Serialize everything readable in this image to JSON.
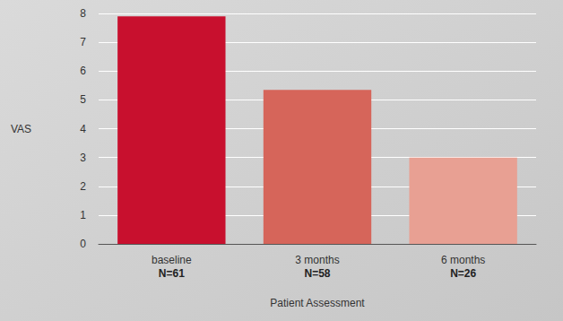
{
  "chart_data": {
    "type": "bar",
    "categories": [
      "baseline\nN=61",
      "3 months\nN=58",
      "6 months\nN=26"
    ],
    "values": [
      7.9,
      5.35,
      3.0
    ],
    "colors": [
      "#c8102e",
      "#d6655a",
      "#e8a093"
    ],
    "x_label": "Patient Assessment",
    "y_label": "VAS",
    "ylim": [
      0,
      8
    ],
    "yticks": [
      0,
      1,
      2,
      3,
      4,
      5,
      6,
      7,
      8
    ],
    "grid": true
  }
}
